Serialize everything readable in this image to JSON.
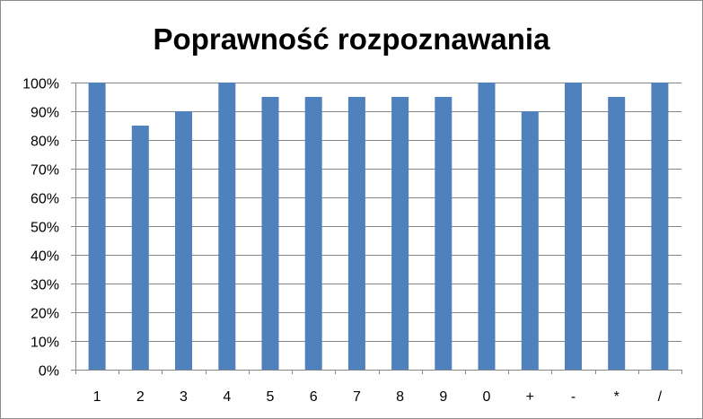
{
  "chart_data": {
    "type": "bar",
    "title": "Poprawność rozpoznawania",
    "xlabel": "",
    "ylabel": "",
    "categories": [
      "1",
      "2",
      "3",
      "4",
      "5",
      "6",
      "7",
      "8",
      "9",
      "0",
      "+",
      "-",
      "*",
      "/"
    ],
    "values": [
      1.0,
      0.85,
      0.9,
      1.0,
      0.95,
      0.95,
      0.95,
      0.95,
      0.95,
      1.0,
      0.9,
      1.0,
      0.95,
      1.0
    ],
    "ylim": [
      0,
      1
    ],
    "yticks": [
      "0%",
      "10%",
      "20%",
      "30%",
      "40%",
      "50%",
      "60%",
      "70%",
      "80%",
      "90%",
      "100%"
    ],
    "grid": true,
    "legend": "none",
    "colors": {
      "bar": "#4f81bd",
      "grid": "#868686",
      "axis": "#868686"
    }
  }
}
